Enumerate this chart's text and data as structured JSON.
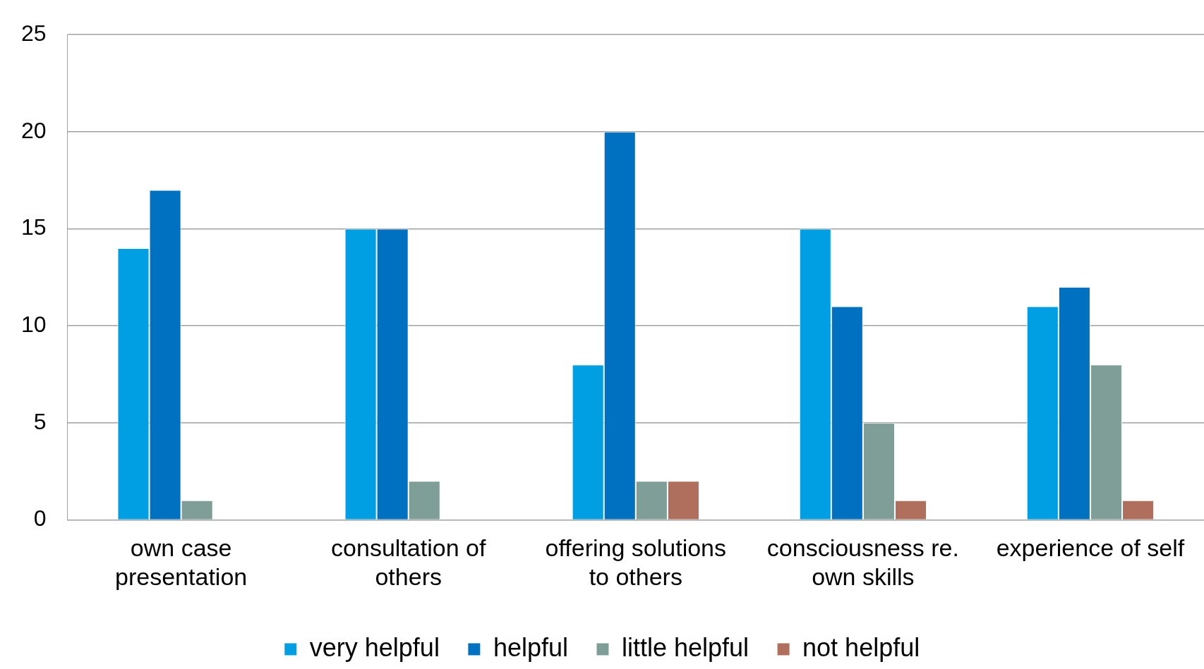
{
  "chart_data": {
    "type": "bar",
    "categories": [
      "own case presentation",
      "consultation of others",
      "offering solutions to others",
      "consciousness re. own skills",
      "experience of self"
    ],
    "series": [
      {
        "name": "very helpful",
        "color": "#009fe3",
        "values": [
          14,
          15,
          8,
          15,
          11
        ]
      },
      {
        "name": "helpful",
        "color": "#0070c0",
        "values": [
          17,
          15,
          20,
          11,
          12
        ]
      },
      {
        "name": "little helpful",
        "color": "#7f9e98",
        "values": [
          1,
          2,
          2,
          5,
          8
        ]
      },
      {
        "name": "not helpful",
        "color": "#b06f5c",
        "values": [
          0,
          0,
          2,
          1,
          1
        ]
      }
    ],
    "ylim": [
      0,
      25
    ],
    "yticks": [
      0,
      5,
      10,
      15,
      20,
      25
    ],
    "grid": "y",
    "legend": "bottom"
  }
}
